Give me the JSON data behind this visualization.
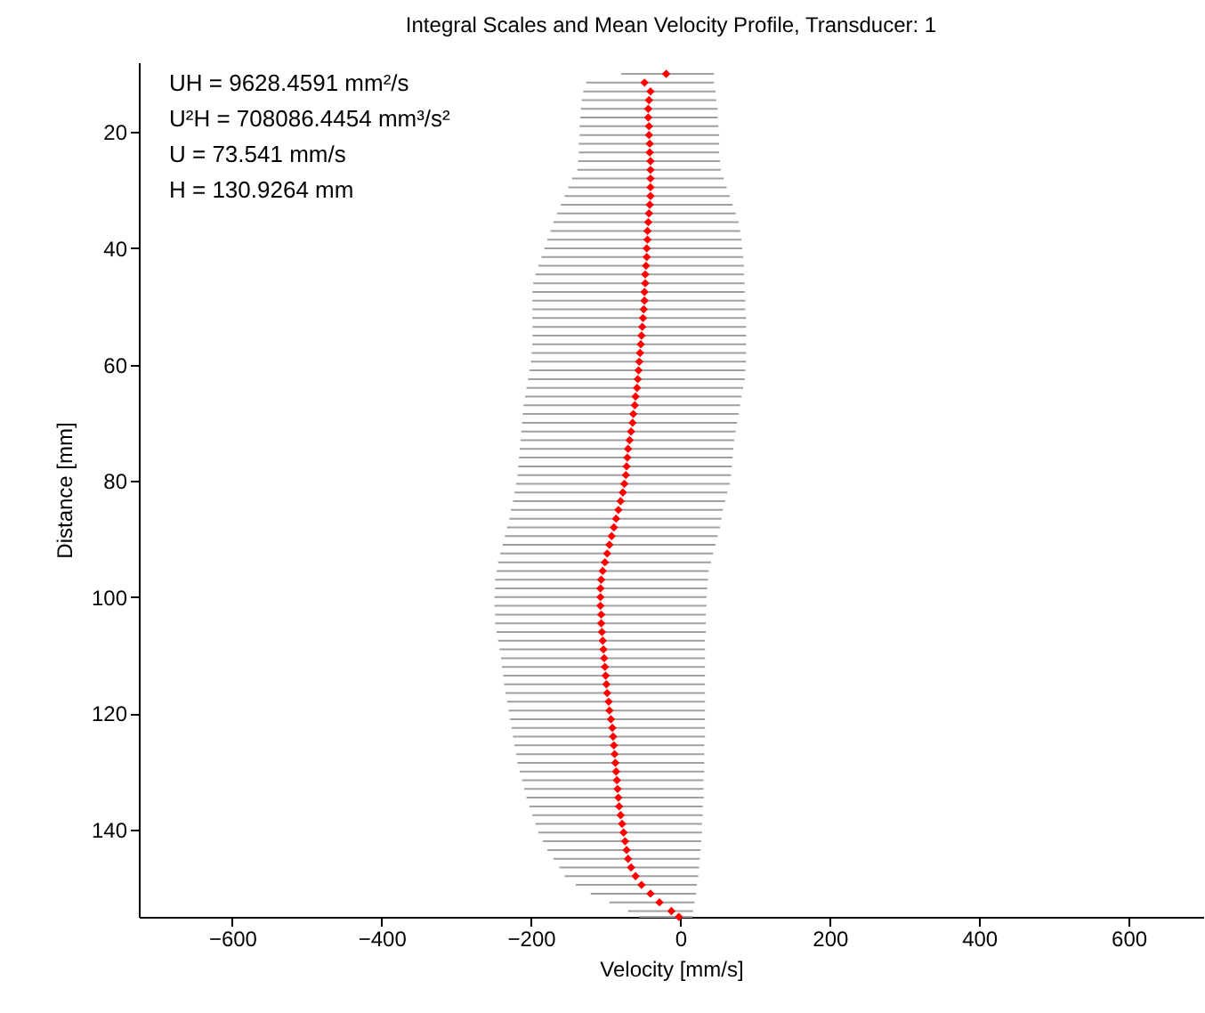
{
  "chart_data": {
    "type": "scatter",
    "title": "Integral Scales and Mean Velocity Profile, Transducer: 1",
    "xlabel": "Velocity [mm/s]",
    "ylabel": "Distance [mm]",
    "annotations": [
      "UH = 9628.4591 mm²/s",
      "U²H = 708086.4454 mm³/s²",
      "U = 73.541 mm/s",
      "H = 130.9264 mm"
    ],
    "x": [
      -19,
      -48,
      -40,
      -42,
      -43,
      -43,
      -42,
      -42,
      -41,
      -41,
      -40,
      -40,
      -40,
      -40,
      -40,
      -41,
      -42,
      -43,
      -44,
      -44,
      -45,
      -45,
      -46,
      -47,
      -47,
      -48,
      -48,
      -49,
      -50,
      -51,
      -52,
      -53,
      -54,
      -55,
      -56,
      -57,
      -58,
      -60,
      -61,
      -63,
      -64,
      -66,
      -68,
      -70,
      -71,
      -72,
      -73,
      -75,
      -77,
      -80,
      -83,
      -86,
      -89,
      -92,
      -95,
      -98,
      -101,
      -104,
      -106,
      -107,
      -107,
      -107,
      -106,
      -106,
      -105,
      -104,
      -103,
      -102,
      -101,
      -100,
      -99,
      -98,
      -96,
      -95,
      -93,
      -91,
      -90,
      -89,
      -88,
      -87,
      -86,
      -85,
      -84,
      -83,
      -82,
      -80,
      -78,
      -76,
      -74,
      -72,
      -70,
      -66,
      -60,
      -52,
      -40,
      -28,
      -12,
      -2
    ],
    "values": [
      10,
      11.5,
      13,
      14.5,
      16,
      17.5,
      19,
      20.5,
      22,
      23.5,
      25,
      26.5,
      28,
      29.5,
      31,
      32.5,
      34,
      35.5,
      37,
      38.5,
      40,
      41.5,
      43,
      44.5,
      46,
      47.5,
      49,
      50.5,
      52,
      53.5,
      55,
      56.5,
      58,
      59.5,
      61,
      62.5,
      64,
      65.5,
      67,
      68.5,
      70,
      71.5,
      73,
      74.5,
      76,
      77.5,
      79,
      80.5,
      82,
      83.5,
      85,
      86.5,
      88,
      89.5,
      91,
      92.5,
      94,
      95.5,
      97,
      98.5,
      100,
      101.5,
      103,
      104.5,
      106,
      107.5,
      109,
      110.5,
      112,
      113.5,
      115,
      116.5,
      118,
      119.5,
      121,
      122.5,
      124,
      125.5,
      127,
      128.5,
      130,
      131.5,
      133,
      134.5,
      136,
      137.5,
      139,
      140.5,
      142,
      143.5,
      145,
      146.5,
      148,
      149.5,
      151,
      152.5,
      154,
      155
    ],
    "xerrors": [
      [
        -79,
        45
      ],
      [
        -126,
        45
      ],
      [
        -130,
        47
      ],
      [
        -132,
        48
      ],
      [
        -133,
        50
      ],
      [
        -134,
        50
      ],
      [
        -135,
        51
      ],
      [
        -135,
        52
      ],
      [
        -136,
        52
      ],
      [
        -136,
        52
      ],
      [
        -137,
        53
      ],
      [
        -138,
        54
      ],
      [
        -145,
        58
      ],
      [
        -150,
        62
      ],
      [
        -155,
        66
      ],
      [
        -160,
        70
      ],
      [
        -165,
        74
      ],
      [
        -170,
        78
      ],
      [
        -174,
        80
      ],
      [
        -178,
        82
      ],
      [
        -182,
        83
      ],
      [
        -186,
        84
      ],
      [
        -190,
        85
      ],
      [
        -194,
        85
      ],
      [
        -197,
        86
      ],
      [
        -198,
        86
      ],
      [
        -198,
        87
      ],
      [
        -198,
        87
      ],
      [
        -198,
        88
      ],
      [
        -198,
        88
      ],
      [
        -198,
        88
      ],
      [
        -198,
        88
      ],
      [
        -199,
        88
      ],
      [
        -200,
        88
      ],
      [
        -202,
        87
      ],
      [
        -204,
        86
      ],
      [
        -206,
        84
      ],
      [
        -208,
        82
      ],
      [
        -210,
        80
      ],
      [
        -211,
        78
      ],
      [
        -212,
        76
      ],
      [
        -213,
        74
      ],
      [
        -214,
        72
      ],
      [
        -215,
        71
      ],
      [
        -216,
        70
      ],
      [
        -217,
        69
      ],
      [
        -218,
        68
      ],
      [
        -220,
        66
      ],
      [
        -222,
        63
      ],
      [
        -224,
        60
      ],
      [
        -227,
        57
      ],
      [
        -229,
        55
      ],
      [
        -232,
        53
      ],
      [
        -235,
        50
      ],
      [
        -238,
        47
      ],
      [
        -241,
        44
      ],
      [
        -244,
        41
      ],
      [
        -246,
        38
      ],
      [
        -248,
        37
      ],
      [
        -248,
        36
      ],
      [
        -249,
        35
      ],
      [
        -249,
        35
      ],
      [
        -248,
        34
      ],
      [
        -248,
        34
      ],
      [
        -246,
        34
      ],
      [
        -244,
        33
      ],
      [
        -242,
        33
      ],
      [
        -240,
        33
      ],
      [
        -239,
        33
      ],
      [
        -237,
        33
      ],
      [
        -236,
        33
      ],
      [
        -234,
        33
      ],
      [
        -232,
        33
      ],
      [
        -230,
        33
      ],
      [
        -228,
        33
      ],
      [
        -226,
        33
      ],
      [
        -224,
        33
      ],
      [
        -222,
        32
      ],
      [
        -220,
        32
      ],
      [
        -218,
        32
      ],
      [
        -215,
        32
      ],
      [
        -212,
        31
      ],
      [
        -209,
        31
      ],
      [
        -206,
        31
      ],
      [
        -202,
        30
      ],
      [
        -198,
        30
      ],
      [
        -194,
        29
      ],
      [
        -190,
        29
      ],
      [
        -184,
        28
      ],
      [
        -178,
        27
      ],
      [
        -170,
        26
      ],
      [
        -162,
        25
      ],
      [
        -155,
        24
      ],
      [
        -140,
        22
      ],
      [
        -120,
        21
      ],
      [
        -95,
        19
      ],
      [
        -70,
        17
      ],
      [
        -55,
        16
      ]
    ],
    "color": "#ff0000",
    "marker": "diamond",
    "xlim": [
      -725,
      700
    ],
    "xticks": [
      -600,
      -400,
      -200,
      0,
      200,
      400,
      600
    ],
    "ylim": [
      155,
      8
    ],
    "yticks": [
      20,
      40,
      60,
      80,
      100,
      120,
      140
    ]
  }
}
